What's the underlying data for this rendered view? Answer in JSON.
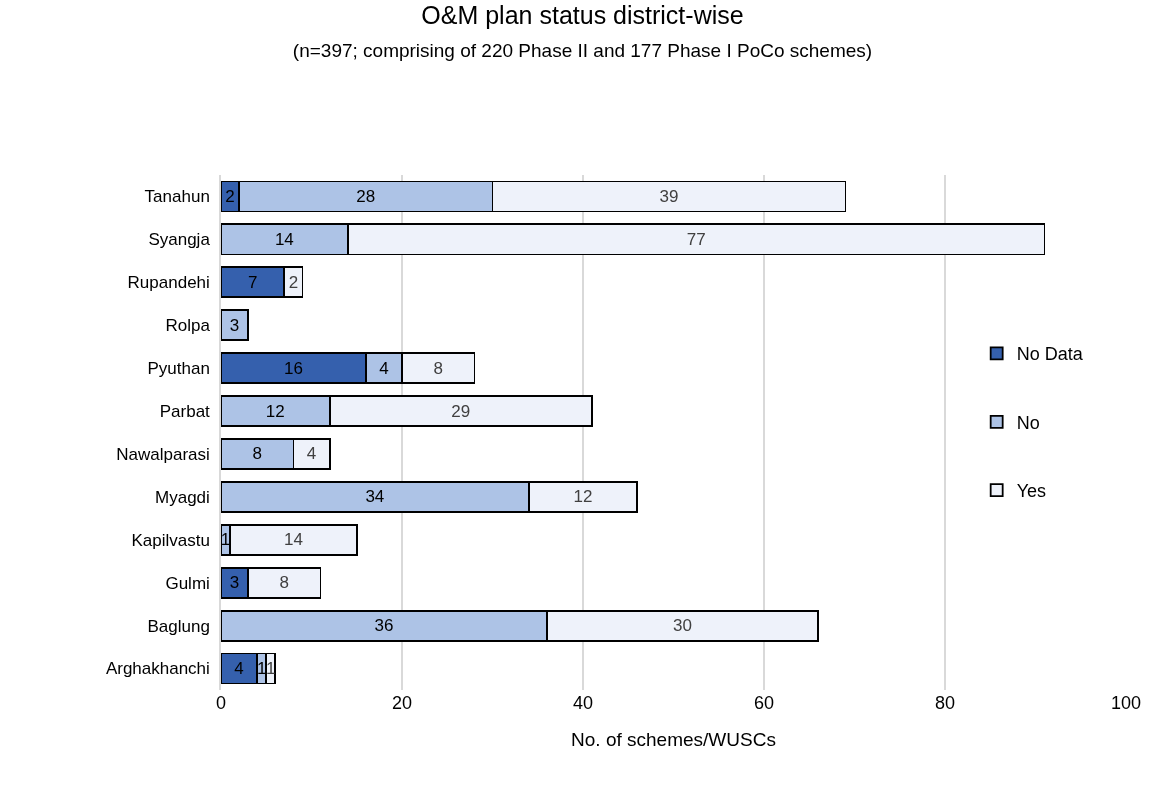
{
  "chart_data": {
    "type": "bar",
    "orientation": "horizontal",
    "stacked": true,
    "title": "O&M plan status district-wise",
    "subtitle": "(n=397; comprising of 220 Phase II and 177 Phase I PoCo schemes)",
    "xlabel": "No. of schemes/WUSCs",
    "categories": [
      "Tanahun",
      "Syangja",
      "Rupandehi",
      "Rolpa",
      "Pyuthan",
      "Parbat",
      "Nawalparasi",
      "Myagdi",
      "Kapilvastu",
      "Gulmi",
      "Baglung",
      "Arghakhanchi"
    ],
    "series": [
      {
        "name": "No Data",
        "color": "#3560ad",
        "values": [
          2,
          null,
          7,
          null,
          16,
          null,
          null,
          null,
          null,
          3,
          null,
          4
        ]
      },
      {
        "name": "No",
        "color": "#adc3e6",
        "values": [
          28,
          14,
          null,
          3,
          4,
          12,
          8,
          34,
          1,
          null,
          36,
          1
        ]
      },
      {
        "name": "Yes",
        "color": "#eef2fa",
        "values": [
          39,
          77,
          2,
          null,
          8,
          29,
          4,
          12,
          14,
          8,
          30,
          1
        ]
      }
    ],
    "xlim": [
      0,
      100
    ],
    "xticks": [
      0,
      20,
      40,
      60,
      80,
      100
    ],
    "grid": "x",
    "legend": "right",
    "data_labels": true
  }
}
